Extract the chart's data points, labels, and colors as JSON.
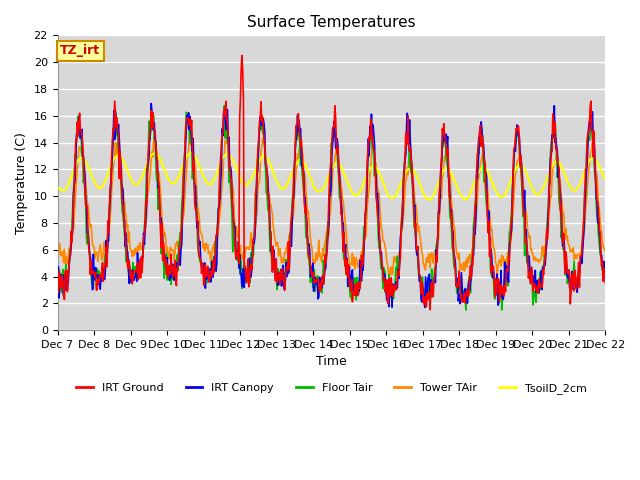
{
  "title": "Surface Temperatures",
  "xlabel": "Time",
  "ylabel": "Temperature (C)",
  "ylim": [
    0,
    22
  ],
  "background_color": "#d8d8d8",
  "plot_bg_color": "#d8d8d8",
  "fig_bg_color": "#ffffff",
  "grid_color": "#ffffff",
  "series": {
    "IRT Ground": {
      "color": "#ff0000",
      "lw": 1.2
    },
    "IRT Canopy": {
      "color": "#0000ee",
      "lw": 1.2
    },
    "Floor Tair": {
      "color": "#00bb00",
      "lw": 1.2
    },
    "Tower TAir": {
      "color": "#ff8800",
      "lw": 1.2
    },
    "TsoilD_2cm": {
      "color": "#ffff00",
      "lw": 1.5
    }
  },
  "xtick_labels": [
    "Dec 7",
    "Dec 8",
    "Dec 9",
    "Dec 10",
    "Dec 11",
    "Dec 12",
    "Dec 13",
    "Dec 14",
    "Dec 15",
    "Dec 16",
    "Dec 17",
    "Dec 18",
    "Dec 19",
    "Dec 20",
    "Dec 21",
    "Dec 22"
  ],
  "annotation_text": "TZ_irt",
  "annotation_color": "#cc0000",
  "annotation_bg": "#ffff99",
  "annotation_border": "#cc8800",
  "title_fontsize": 11,
  "axis_label_fontsize": 9,
  "tick_fontsize": 8
}
